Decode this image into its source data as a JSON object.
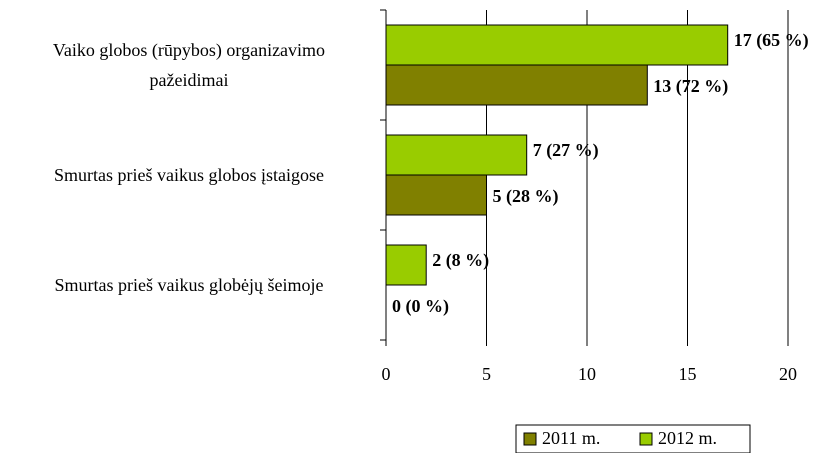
{
  "chart_data": {
    "type": "bar",
    "orientation": "horizontal",
    "categories": [
      "Vaiko globos (rūpybos) organizavimo\npažeidimai",
      "Smurtas prieš vaikus globos įstaigose",
      "Smurtas prieš vaikus globėjų šeimoje"
    ],
    "series": [
      {
        "name": "2011 m.",
        "color": "#808000",
        "values": [
          13,
          5,
          0
        ],
        "value_labels": [
          "13 (72 %)",
          "5 (28 %)",
          "0 (0 %)"
        ]
      },
      {
        "name": "2012 m.",
        "color": "#99cc00",
        "values": [
          17,
          7,
          2
        ],
        "value_labels": [
          "17 (65 %)",
          "7 (27 %)",
          "2 (8 %)"
        ]
      }
    ],
    "xlim": [
      0,
      20
    ],
    "xticks": [
      0,
      5,
      10,
      15,
      20
    ],
    "grid": true,
    "legend": "bottom"
  }
}
